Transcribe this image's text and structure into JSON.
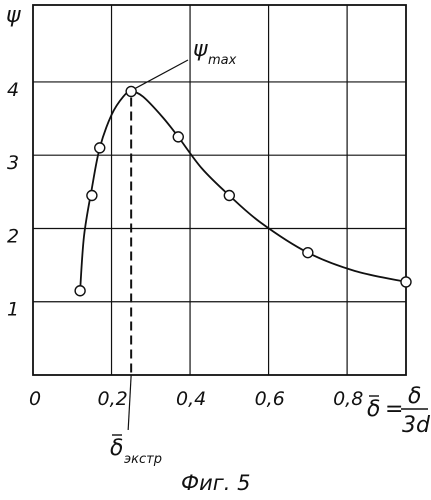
{
  "chart_data": {
    "type": "scatter",
    "title": "",
    "ylabel": "ψ",
    "xlabel_symbol": "δ",
    "xlabel_eq": "=",
    "xlabel_num": "δ",
    "xlabel_den": "3d",
    "x_ticks": [
      "0",
      "0,2",
      "0,4",
      "0,6",
      "0,8"
    ],
    "x_tick_values": [
      0,
      0.2,
      0.4,
      0.6,
      0.8
    ],
    "y_ticks": [
      "1",
      "2",
      "3",
      "4"
    ],
    "y_tick_values": [
      1,
      2,
      3,
      4
    ],
    "xlim": [
      0,
      0.95
    ],
    "ylim": [
      0,
      5.05
    ],
    "grid": true,
    "series": [
      {
        "points": [
          {
            "x": 0.12,
            "y": 1.15
          },
          {
            "x": 0.15,
            "y": 2.45
          },
          {
            "x": 0.17,
            "y": 3.1
          },
          {
            "x": 0.25,
            "y": 3.87
          },
          {
            "x": 0.37,
            "y": 3.25
          },
          {
            "x": 0.5,
            "y": 2.45
          },
          {
            "x": 0.7,
            "y": 1.67
          },
          {
            "x": 0.95,
            "y": 1.27
          }
        ],
        "curve": [
          [
            0.12,
            1.15
          ],
          [
            0.13,
            1.9
          ],
          [
            0.15,
            2.55
          ],
          [
            0.17,
            3.1
          ],
          [
            0.2,
            3.55
          ],
          [
            0.23,
            3.8
          ],
          [
            0.25,
            3.87
          ],
          [
            0.28,
            3.8
          ],
          [
            0.33,
            3.52
          ],
          [
            0.37,
            3.25
          ],
          [
            0.43,
            2.82
          ],
          [
            0.5,
            2.45
          ],
          [
            0.58,
            2.08
          ],
          [
            0.7,
            1.67
          ],
          [
            0.82,
            1.42
          ],
          [
            0.95,
            1.27
          ]
        ]
      }
    ],
    "annotations": {
      "max_label": "ψ",
      "max_sub": "max",
      "max_point": {
        "x": 0.25,
        "y": 3.87
      },
      "extremum_label": "δ",
      "extremum_sub": "экстр",
      "extremum_x": 0.25
    },
    "figure_caption": "Фиг. 5"
  }
}
